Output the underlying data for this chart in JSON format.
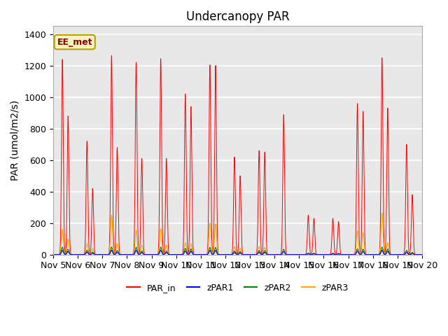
{
  "title": "Undercanopy PAR",
  "ylabel": "PAR (umol/m2/s)",
  "xlabel": "",
  "annotation": "EE_met",
  "ylim": [
    0,
    1450
  ],
  "plot_bg_color": "#e8e8e8",
  "grid_color": "white",
  "legend_labels": [
    "PAR_in",
    "zPAR1",
    "zPAR2",
    "zPAR3"
  ],
  "tick_labels": [
    "Nov 5",
    "Nov 6",
    "Nov 7",
    "Nov 8",
    "Nov 9",
    "Nov 10",
    "Nov 11",
    "Nov 12",
    "Nov 13",
    "Nov 14",
    "Nov 15",
    "Nov 16",
    "Nov 17",
    "Nov 18",
    "Nov 19",
    "Nov 20"
  ],
  "days": 15,
  "PAR_in_peaks": [
    1240,
    720,
    1265,
    1220,
    1245,
    1020,
    1205,
    620,
    660,
    890,
    250,
    230,
    960,
    1250,
    700
  ],
  "PAR_in_peaks2": [
    880,
    420,
    680,
    610,
    610,
    940,
    1200,
    500,
    650,
    0,
    230,
    210,
    910,
    930,
    380
  ],
  "zPAR3_peaks": [
    160,
    70,
    250,
    155,
    165,
    75,
    200,
    50,
    50,
    0,
    0,
    0,
    150,
    265,
    5
  ],
  "zPAR3_peaks2": [
    100,
    40,
    70,
    60,
    60,
    70,
    195,
    40,
    45,
    0,
    0,
    0,
    140,
    75,
    0
  ],
  "zPAR1_scale": 0.022,
  "zPAR2_scale": 0.038,
  "title_fontsize": 12,
  "label_fontsize": 10,
  "tick_fontsize": 9
}
